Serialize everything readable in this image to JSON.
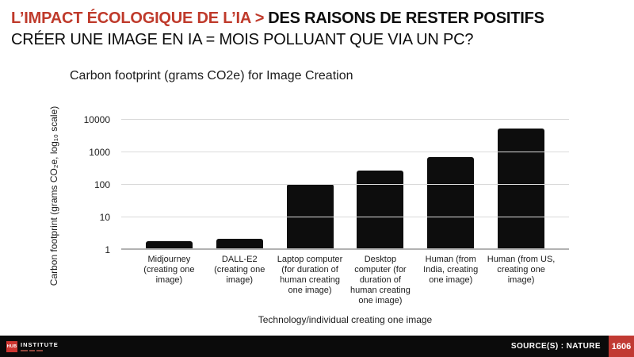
{
  "header": {
    "title_highlight": "L’IMPACT ÉCOLOGIQUE DE L’IA >",
    "title_rest": "DES RAISONS DE RESTER POSITIFS",
    "subtitle": "CRÉER UNE IMAGE EN IA = MOIS POLLUANT QUE VIA UN PC?"
  },
  "chart_data": {
    "type": "bar",
    "title": "Carbon footprint (grams CO2e) for Image Creation",
    "xlabel": "Technology/individual creating one image",
    "ylabel": "Carbon footprint (grams CO₂e, log₁₀ scale)",
    "y_scale": "log10",
    "ylim": [
      1,
      10000
    ],
    "y_ticks": [
      1,
      10,
      100,
      1000,
      10000
    ],
    "grid": "horizontal",
    "legend": "none",
    "bar_color": "#0d0d0d",
    "categories": [
      "Midjourney (creating one image)",
      "DALL-E2 (creating one image)",
      "Laptop computer (for duration of human creating one image)",
      "Desktop computer (for duration of human creating one image)",
      "Human (from India, creating one image)",
      "Human (from US, creating one image)"
    ],
    "values": [
      1.9,
      2.2,
      105,
      280,
      700,
      5500
    ]
  },
  "footer": {
    "logo_hub": "HUB",
    "logo_institute": "INSTITUTE",
    "source": "SOURCE(S) : NATURE",
    "page": "1606"
  },
  "colors": {
    "accent_red": "#bf3a2b",
    "footer_bg": "#0b0b0b",
    "page_box_red": "#c13a33",
    "gridline": "#dadada",
    "baseline": "#b2b2b2"
  }
}
